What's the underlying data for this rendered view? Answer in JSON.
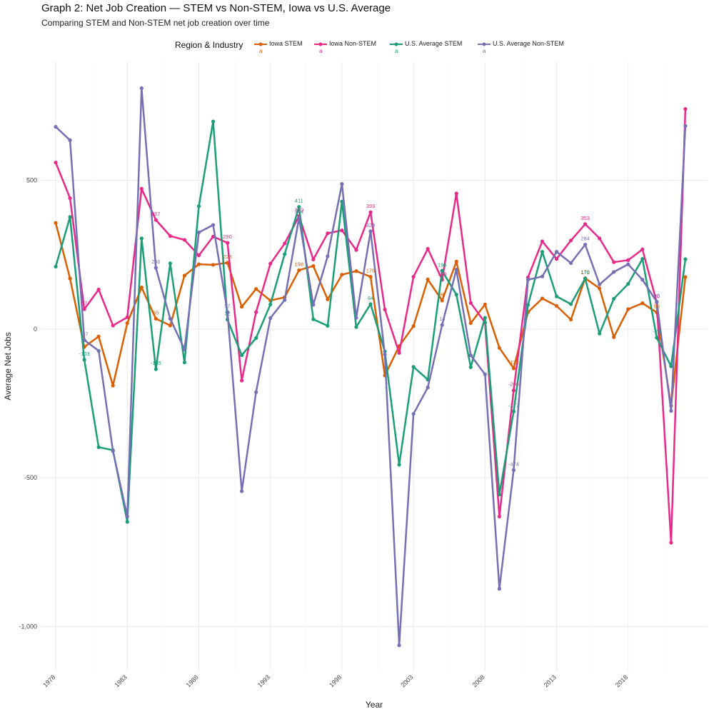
{
  "chart_data": {
    "type": "line",
    "title": "Graph 2: Net Job Creation — STEM vs Non-STEM, Iowa vs U.S. Average",
    "subtitle": "Comparing STEM and Non-STEM net job creation over time",
    "xlabel": "Year",
    "ylabel": "Average Net Jobs",
    "xlim": [
      1977,
      2023.5
    ],
    "ylim": [
      -1150,
      900
    ],
    "x_ticks": [
      1978,
      1983,
      1988,
      1993,
      1998,
      2003,
      2008,
      2013,
      2018
    ],
    "x_tick_labels": [
      "1978",
      "1983",
      "1988",
      "1993",
      "1998",
      "2003",
      "2008",
      "2013",
      "2018"
    ],
    "y_ticks": [
      -1000,
      -500,
      0,
      500
    ],
    "y_tick_labels": [
      "-1,000",
      "-500",
      "0",
      "500"
    ],
    "grid": true,
    "legend_title": "Region & Industry",
    "legend_position": "top",
    "x": [
      1978,
      1979,
      1980,
      1981,
      1982,
      1983,
      1984,
      1985,
      1986,
      1987,
      1988,
      1989,
      1990,
      1991,
      1992,
      1993,
      1994,
      1995,
      1996,
      1997,
      1998,
      1999,
      2000,
      2001,
      2002,
      2003,
      2004,
      2005,
      2006,
      2007,
      2008,
      2009,
      2010,
      2011,
      2012,
      2013,
      2014,
      2015,
      2016,
      2017,
      2018,
      2019,
      2020,
      2021,
      2022
    ],
    "series": [
      {
        "name": "Iowa STEM",
        "color": "#D95F02",
        "values": [
          357,
          170,
          -60,
          -25,
          -190,
          20,
          140,
          35,
          12,
          180,
          218,
          216,
          223,
          75,
          135,
          96,
          107,
          198,
          212,
          100,
          183,
          195,
          176,
          -156,
          -57,
          10,
          167,
          96,
          227,
          20,
          83,
          -63,
          -132,
          57,
          103,
          78,
          32,
          171,
          137,
          -27,
          67,
          87,
          56,
          -258,
          175
        ]
      },
      {
        "name": "Iowa Non-STEM",
        "color": "#E7298A",
        "values": [
          560,
          440,
          67,
          133,
          12,
          40,
          472,
          367,
          313,
          300,
          248,
          311,
          290,
          -173,
          57,
          220,
          288,
          380,
          234,
          322,
          332,
          266,
          393,
          66,
          -80,
          176,
          270,
          166,
          456,
          88,
          22,
          -630,
          -206,
          174,
          295,
          236,
          298,
          353,
          305,
          225,
          232,
          268,
          90,
          -718,
          740
        ]
      },
      {
        "name": "U.S. Average STEM",
        "color": "#1B9E77",
        "values": [
          210,
          377,
          -103,
          -397,
          -407,
          -648,
          305,
          -135,
          221,
          -112,
          413,
          698,
          32,
          -88,
          -30,
          83,
          252,
          411,
          33,
          11,
          429,
          7,
          84,
          -75,
          -456,
          -127,
          -170,
          196,
          116,
          -128,
          38,
          -556,
          -277,
          81,
          260,
          110,
          84,
          170,
          -15,
          102,
          152,
          236,
          -29,
          -125,
          235
        ]
      },
      {
        "name": "U.S. Average Non-STEM",
        "color": "#7570B3",
        "values": [
          680,
          635,
          -37,
          -73,
          -410,
          -630,
          810,
          206,
          35,
          -68,
          325,
          350,
          57,
          -545,
          -212,
          37,
          98,
          374,
          82,
          245,
          488,
          38,
          329,
          -85,
          -1063,
          -285,
          -196,
          14,
          200,
          -88,
          -152,
          -873,
          -474,
          166,
          177,
          260,
          222,
          284,
          150,
          192,
          218,
          166,
          92,
          -275,
          683
        ]
      }
    ],
    "point_labels": [
      {
        "series": 0,
        "year": 1985,
        "text": "35"
      },
      {
        "series": 0,
        "year": 1990,
        "text": "223"
      },
      {
        "series": 0,
        "year": 1995,
        "text": "198"
      },
      {
        "series": 0,
        "year": 2000,
        "text": "176"
      },
      {
        "series": 0,
        "year": 2005,
        "text": "96"
      },
      {
        "series": 0,
        "year": 2010,
        "text": "-132"
      },
      {
        "series": 0,
        "year": 2015,
        "text": "171"
      },
      {
        "series": 0,
        "year": 2020,
        "text": "56"
      },
      {
        "series": 1,
        "year": 1980,
        "text": "67"
      },
      {
        "series": 1,
        "year": 1985,
        "text": "367"
      },
      {
        "series": 1,
        "year": 1990,
        "text": "290"
      },
      {
        "series": 1,
        "year": 1995,
        "text": "380"
      },
      {
        "series": 1,
        "year": 2000,
        "text": "393"
      },
      {
        "series": 1,
        "year": 2005,
        "text": "166"
      },
      {
        "series": 1,
        "year": 2010,
        "text": "-206"
      },
      {
        "series": 1,
        "year": 2015,
        "text": "353"
      },
      {
        "series": 1,
        "year": 2020,
        "text": "90"
      },
      {
        "series": 2,
        "year": 1980,
        "text": "-103"
      },
      {
        "series": 2,
        "year": 1985,
        "text": "-135"
      },
      {
        "series": 2,
        "year": 1990,
        "text": "32"
      },
      {
        "series": 2,
        "year": 1995,
        "text": "411"
      },
      {
        "series": 2,
        "year": 2000,
        "text": "84"
      },
      {
        "series": 2,
        "year": 2005,
        "text": "196"
      },
      {
        "series": 2,
        "year": 2010,
        "text": "-277"
      },
      {
        "series": 2,
        "year": 2015,
        "text": "170"
      },
      {
        "series": 2,
        "year": 2020,
        "text": "-29"
      },
      {
        "series": 3,
        "year": 1980,
        "text": "-37"
      },
      {
        "series": 3,
        "year": 1985,
        "text": "206"
      },
      {
        "series": 3,
        "year": 1990,
        "text": "57"
      },
      {
        "series": 3,
        "year": 1995,
        "text": "374"
      },
      {
        "series": 3,
        "year": 2000,
        "text": "329"
      },
      {
        "series": 3,
        "year": 2005,
        "text": "14"
      },
      {
        "series": 3,
        "year": 2010,
        "text": "-474"
      },
      {
        "series": 3,
        "year": 2015,
        "text": "284"
      },
      {
        "series": 3,
        "year": 2020,
        "text": "92"
      }
    ]
  },
  "legend": {
    "sub_glyph": "a"
  }
}
